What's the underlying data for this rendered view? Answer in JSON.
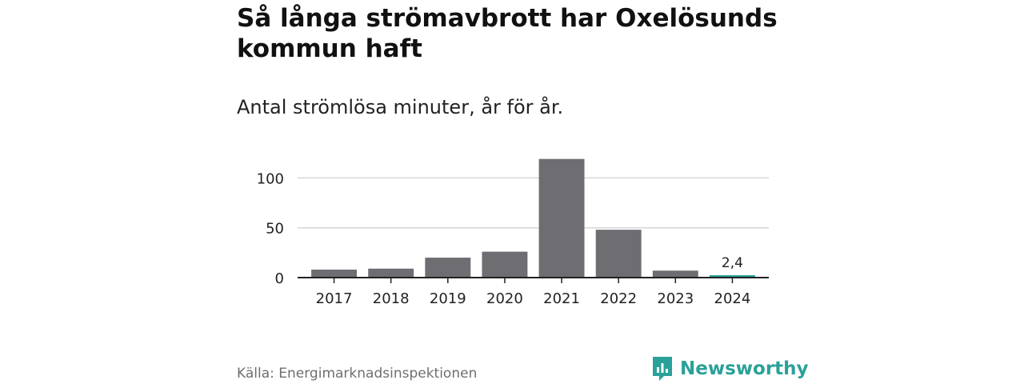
{
  "brand": {
    "name": "Newsworthy",
    "accent": "#2aa198"
  },
  "source": "Källa: Energimarknadsinspektionen",
  "chart_data": {
    "type": "bar",
    "title": "Så långa strömavbrott har Oxelösunds kommun haft",
    "subtitle": "Antal strömlösa minuter, år för år.",
    "categories": [
      "2017",
      "2018",
      "2019",
      "2020",
      "2021",
      "2022",
      "2023",
      "2024"
    ],
    "values": [
      8,
      9,
      20,
      26,
      119,
      48,
      7,
      2.4
    ],
    "ylim": [
      0,
      130
    ],
    "yticks": [
      0,
      50,
      100
    ],
    "grid": true,
    "xlabel": "",
    "ylabel": "",
    "bar_color": "#6e6d72",
    "highlight_color": "#2aa198",
    "highlight_index": 7,
    "data_labels": [
      {
        "index": 7,
        "text": "2,4"
      }
    ]
  }
}
